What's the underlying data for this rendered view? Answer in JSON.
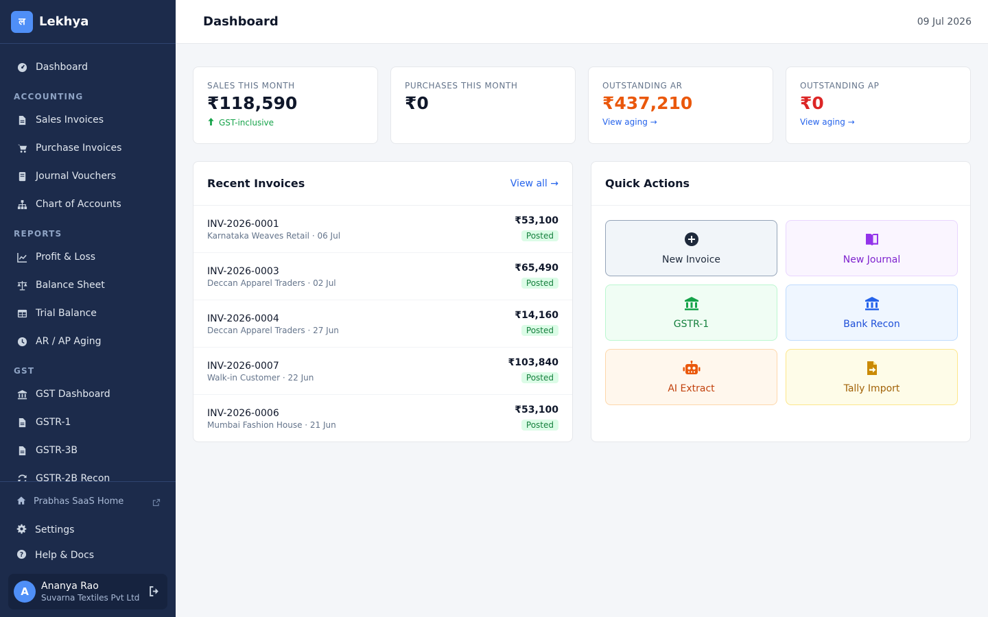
{
  "brand": {
    "logo_glyph": "ल",
    "name": "Lekhya"
  },
  "nav": {
    "dashboard": "Dashboard",
    "sections": {
      "accounting": "ACCOUNTING",
      "reports": "REPORTS",
      "gst": "GST"
    },
    "accounting_items": [
      "Sales Invoices",
      "Purchase Invoices",
      "Journal Vouchers",
      "Chart of Accounts"
    ],
    "report_items": [
      "Profit & Loss",
      "Balance Sheet",
      "Trial Balance",
      "AR / AP Aging"
    ],
    "gst_items": [
      "GST Dashboard",
      "GSTR-1",
      "GSTR-3B",
      "GSTR-2B Recon"
    ]
  },
  "sidebar_bottom": {
    "home_link": "Prabhas SaaS Home",
    "settings": "Settings",
    "help": "Help & Docs",
    "user": {
      "initial": "A",
      "name": "Ananya Rao",
      "org": "Suvarna Textiles Pvt Ltd"
    }
  },
  "header": {
    "title": "Dashboard",
    "date": "09 Jul 2026"
  },
  "kpis": [
    {
      "label": "SALES THIS MONTH",
      "value": "₹118,590",
      "sub": "GST-inclusive",
      "value_color": "#0f172a"
    },
    {
      "label": "PURCHASES THIS MONTH",
      "value": "₹0",
      "sub": "",
      "value_color": "#0f172a"
    },
    {
      "label": "OUTSTANDING AR",
      "value": "₹437,210",
      "sub": "View aging →",
      "value_color": "#ea580c"
    },
    {
      "label": "OUTSTANDING AP",
      "value": "₹0",
      "sub": "View aging →",
      "value_color": "#dc2626"
    }
  ],
  "recent_invoices": {
    "title": "Recent Invoices",
    "view_all": "View all →",
    "rows": [
      {
        "number": "INV-2026-0001",
        "meta": "Karnataka Weaves Retail · 06 Jul",
        "amount": "₹53,100",
        "status": "Posted"
      },
      {
        "number": "INV-2026-0003",
        "meta": "Deccan Apparel Traders · 02 Jul",
        "amount": "₹65,490",
        "status": "Posted"
      },
      {
        "number": "INV-2026-0004",
        "meta": "Deccan Apparel Traders · 27 Jun",
        "amount": "₹14,160",
        "status": "Posted"
      },
      {
        "number": "INV-2026-0007",
        "meta": "Walk-in Customer · 22 Jun",
        "amount": "₹103,840",
        "status": "Posted"
      },
      {
        "number": "INV-2026-0006",
        "meta": "Mumbai Fashion House · 21 Jun",
        "amount": "₹53,100",
        "status": "Posted"
      }
    ]
  },
  "quick_actions": {
    "title": "Quick Actions",
    "items": [
      {
        "label": "New Invoice",
        "icon": "plus-circle-icon",
        "bg": "#f1f5f9",
        "border": "#94a3b8",
        "color": "#1e293b"
      },
      {
        "label": "New Journal",
        "icon": "book-icon",
        "bg": "#faf5ff",
        "border": "#e9d5ff",
        "color": "#7e22ce"
      },
      {
        "label": "GSTR-1",
        "icon": "bank-icon",
        "bg": "#f0fdf4",
        "border": "#bbf7d0",
        "color": "#15803d"
      },
      {
        "label": "Bank Recon",
        "icon": "bank-icon",
        "bg": "#eff6ff",
        "border": "#bfdbfe",
        "color": "#1d4ed8"
      },
      {
        "label": "AI Extract",
        "icon": "robot-icon",
        "bg": "#fff7ed",
        "border": "#fed7aa",
        "color": "#c2410c"
      },
      {
        "label": "Tally Import",
        "icon": "file-import-icon",
        "bg": "#fefce8",
        "border": "#fde68a",
        "color": "#a16207"
      }
    ]
  }
}
